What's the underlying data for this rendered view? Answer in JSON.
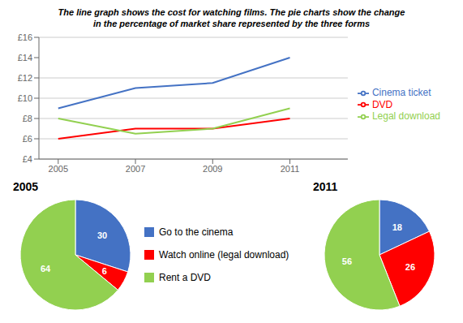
{
  "chart_data": [
    {
      "type": "line",
      "title": "The line graph shows the cost for watching films. The pie charts show the change",
      "subtitle": "in the percentage of market share represented by the three forms",
      "x": [
        2005,
        2007,
        2009,
        2011
      ],
      "series": [
        {
          "name": "Cinema ticket",
          "color": "#4472C4",
          "values": [
            9,
            11,
            11.5,
            14
          ]
        },
        {
          "name": "DVD",
          "color": "#FF0000",
          "values": [
            6,
            7,
            7,
            8
          ]
        },
        {
          "name": "Legal download",
          "color": "#92D050",
          "values": [
            8,
            6.5,
            7,
            9
          ]
        }
      ],
      "xlim": [
        2004.5,
        2012.5
      ],
      "xticks": [
        2005,
        2007,
        2009,
        2011
      ],
      "ylim": [
        4,
        16
      ],
      "yticks": [
        {
          "value": 4,
          "label": "£4"
        },
        {
          "value": 6,
          "label": "£6"
        },
        {
          "value": 8,
          "label": "£8"
        },
        {
          "value": 10,
          "label": "£10"
        },
        {
          "value": 12,
          "label": "£12"
        },
        {
          "value": 14,
          "label": "£14"
        },
        {
          "value": 16,
          "label": "£16"
        }
      ],
      "grid": true,
      "legend": "right"
    },
    {
      "type": "pie",
      "title": "2005",
      "categories": [
        "Go to the cinema",
        "Watch online (legal download)",
        "Rent a DVD"
      ],
      "values": [
        30,
        6,
        64
      ],
      "colors": [
        "#4472C4",
        "#FF0000",
        "#92D050"
      ],
      "data_labels": true,
      "legend": "right"
    },
    {
      "type": "pie",
      "title": "2011",
      "categories": [
        "Go to the cinema",
        "Watch online (legal download)",
        "Rent a DVD"
      ],
      "values": [
        18,
        26,
        56
      ],
      "colors": [
        "#4472C4",
        "#FF0000",
        "#92D050"
      ],
      "data_labels": true
    }
  ]
}
